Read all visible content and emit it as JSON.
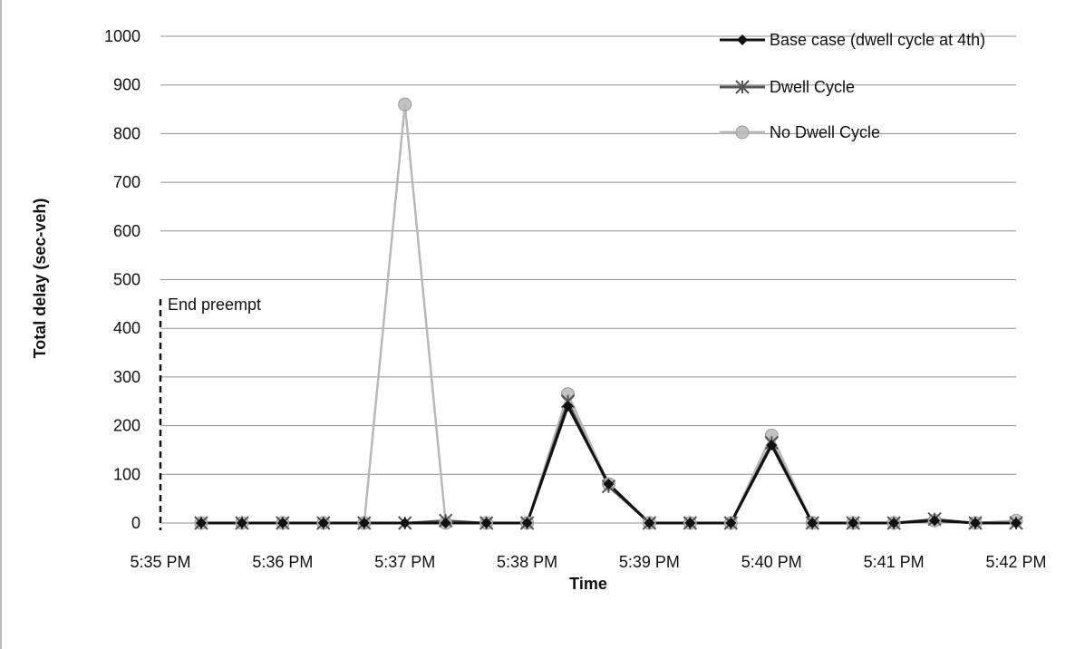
{
  "chart_data": {
    "type": "line",
    "title": "",
    "xlabel": "Time",
    "ylabel": "Total delay (sec-veh)",
    "ylim": [
      0,
      1000
    ],
    "yticks": [
      "0",
      "100",
      "200",
      "300",
      "400",
      "500",
      "600",
      "700",
      "800",
      "900",
      "1000"
    ],
    "xlim": [
      "5:35 PM",
      "5:42 PM"
    ],
    "xticks": [
      "5:35 PM",
      "5:36 PM",
      "5:37 PM",
      "5:38 PM",
      "5:39 PM",
      "5:40 PM",
      "5:41 PM",
      "5:42 PM"
    ],
    "grid": "horizontal",
    "legend_position": "top-right",
    "x": [
      "5:35:20 PM",
      "5:35:40 PM",
      "5:36:00 PM",
      "5:36:20 PM",
      "5:36:40 PM",
      "5:37:00 PM",
      "5:37:20 PM",
      "5:37:40 PM",
      "5:38:00 PM",
      "5:38:20 PM",
      "5:38:40 PM",
      "5:39:00 PM",
      "5:39:20 PM",
      "5:39:40 PM",
      "5:40:00 PM",
      "5:40:20 PM",
      "5:40:40 PM",
      "5:41:00 PM",
      "5:41:20 PM",
      "5:41:40 PM",
      "5:42:00 PM"
    ],
    "series": [
      {
        "name": "Base case (dwell cycle at 4th)",
        "color": "#111111",
        "marker": "diamond",
        "values": [
          0,
          0,
          0,
          0,
          0,
          0,
          0,
          0,
          0,
          240,
          80,
          0,
          0,
          0,
          160,
          0,
          0,
          0,
          5,
          0,
          0
        ]
      },
      {
        "name": "Dwell Cycle",
        "color": "#555555",
        "marker": "star",
        "values": [
          0,
          0,
          0,
          0,
          0,
          0,
          5,
          0,
          0,
          250,
          75,
          0,
          0,
          0,
          165,
          0,
          0,
          0,
          8,
          0,
          0
        ]
      },
      {
        "name": "No Dwell Cycle",
        "color": "#b8b8b8",
        "marker": "circle",
        "values": [
          0,
          0,
          0,
          0,
          0,
          860,
          0,
          0,
          0,
          265,
          80,
          0,
          0,
          0,
          180,
          0,
          0,
          0,
          5,
          0,
          5
        ]
      }
    ],
    "annotations": [
      {
        "text": "End preempt",
        "x": "5:35 PM",
        "y_top": 460,
        "style": "dashed-vertical-line"
      }
    ]
  }
}
